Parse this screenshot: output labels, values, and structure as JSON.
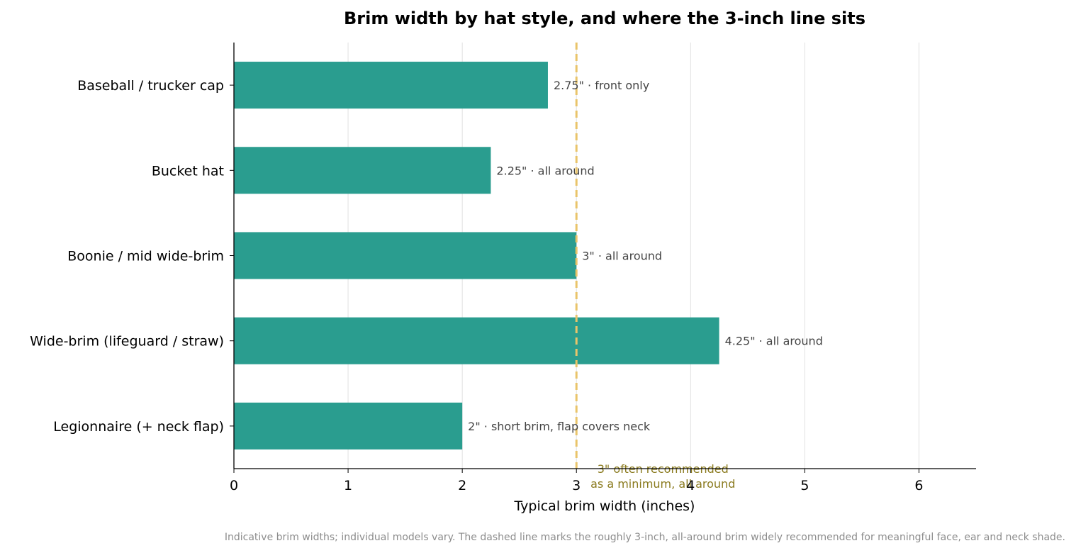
{
  "chart_data": {
    "type": "bar",
    "orientation": "horizontal",
    "title": "Brim width by hat style, and where the 3-inch line sits",
    "xlabel": "Typical brim width (inches)",
    "ylabel": "",
    "xlim": [
      0,
      6.5
    ],
    "xticks": [
      0,
      1,
      2,
      3,
      4,
      5,
      6
    ],
    "grid": "vertical",
    "categories": [
      "Baseball / trucker cap",
      "Bucket hat",
      "Boonie / mid wide-brim",
      "Wide-brim (lifeguard / straw)",
      "Legionnaire (+ neck flap)"
    ],
    "values": [
      2.75,
      2.25,
      3,
      4.25,
      2
    ],
    "data_labels": [
      "2.75\"  ·  front only",
      "2.25\"  ·  all around",
      "3\"  ·  all around",
      "4.25\"  ·  all around",
      "2\"  ·  short brim, flap covers neck"
    ],
    "bar_color": "#2a9d8f",
    "reference_line": {
      "value": 3,
      "color": "#e9c46a",
      "style": "dashed",
      "label_lines": [
        "3\" often recommended",
        "as a minimum, all around"
      ]
    },
    "footnote": "Indicative brim widths; individual models vary. The dashed line marks the roughly 3-inch, all-around brim widely recommended for meaningful face, ear and neck shade."
  }
}
